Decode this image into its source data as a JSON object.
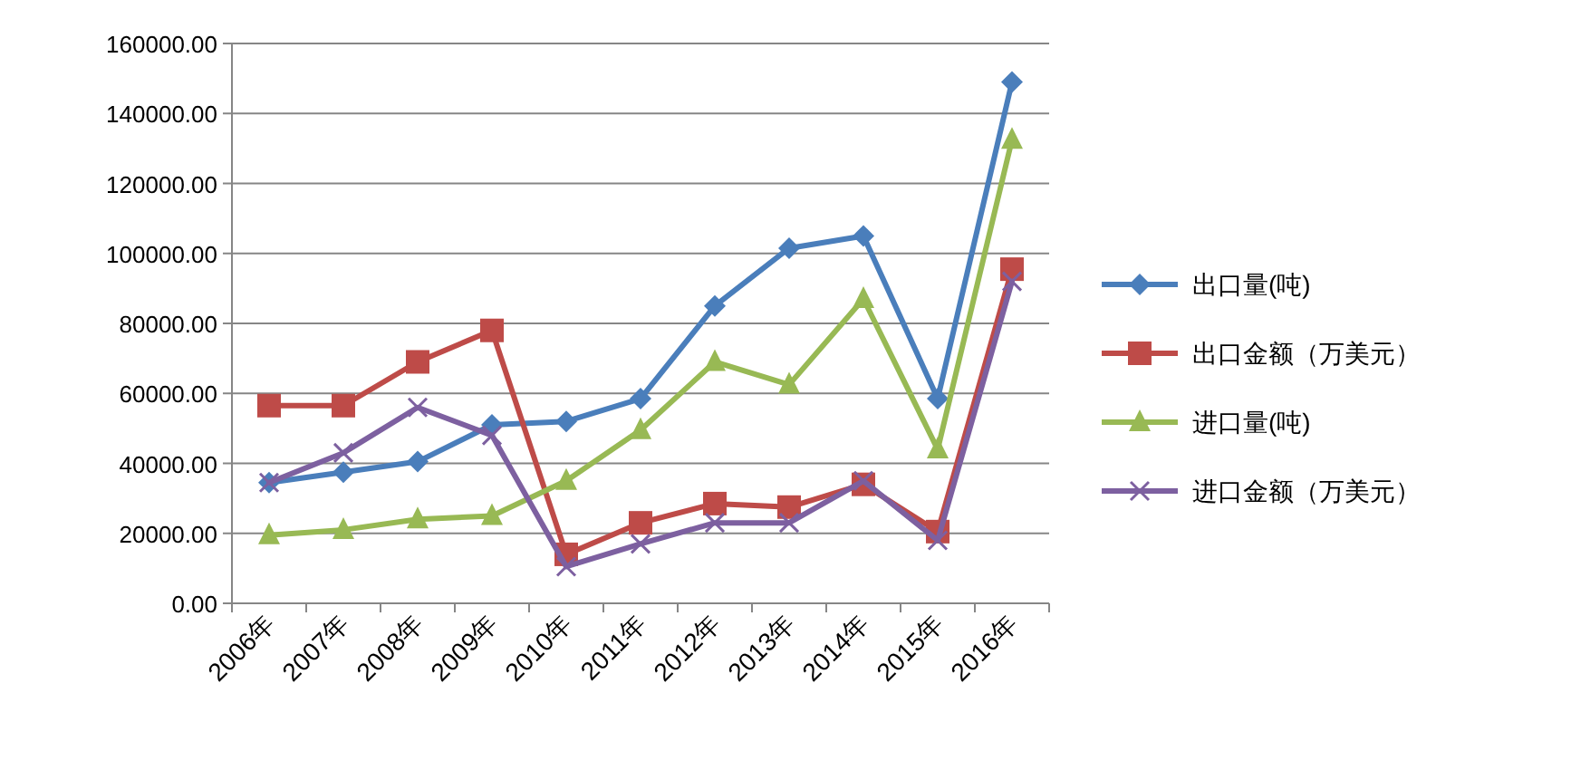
{
  "chart_data": {
    "type": "line",
    "categories": [
      "2006年",
      "2007年",
      "2008年",
      "2009年",
      "2010年",
      "2011年",
      "2012年",
      "2013年",
      "2014年",
      "2015年",
      "2016年"
    ],
    "series": [
      {
        "name": "出口量(吨)",
        "color": "#4a7ebb",
        "marker": "diamond",
        "values": [
          34500,
          37500,
          40500,
          51000,
          52000,
          58500,
          85000,
          101500,
          105000,
          58500,
          149000
        ]
      },
      {
        "name": "出口金额（万美元）",
        "color": "#be4b48",
        "marker": "square",
        "values": [
          56500,
          56500,
          69000,
          78000,
          14000,
          23000,
          28500,
          27500,
          34000,
          20500,
          95500
        ]
      },
      {
        "name": "进口量(吨)",
        "color": "#98b954",
        "marker": "triangle",
        "values": [
          19500,
          21000,
          24000,
          25000,
          35000,
          49500,
          69000,
          62500,
          87000,
          44000,
          132500
        ]
      },
      {
        "name": "进口金额（万美元）",
        "color": "#7d60a0",
        "marker": "cross",
        "values": [
          34500,
          43000,
          56000,
          48000,
          10500,
          17000,
          23000,
          23000,
          35000,
          18000,
          92000
        ]
      }
    ],
    "ylim": [
      0,
      160000
    ],
    "yticks": [
      {
        "value": 0,
        "label": "0.00"
      },
      {
        "value": 20000,
        "label": "20000.00"
      },
      {
        "value": 40000,
        "label": "40000.00"
      },
      {
        "value": 60000,
        "label": "60000.00"
      },
      {
        "value": 80000,
        "label": "80000.00"
      },
      {
        "value": 100000,
        "label": "100000.00"
      },
      {
        "value": 120000,
        "label": "120000.00"
      },
      {
        "value": 140000,
        "label": "140000.00"
      },
      {
        "value": 160000,
        "label": "160000.00"
      }
    ],
    "grid": "y",
    "legend": "right"
  }
}
